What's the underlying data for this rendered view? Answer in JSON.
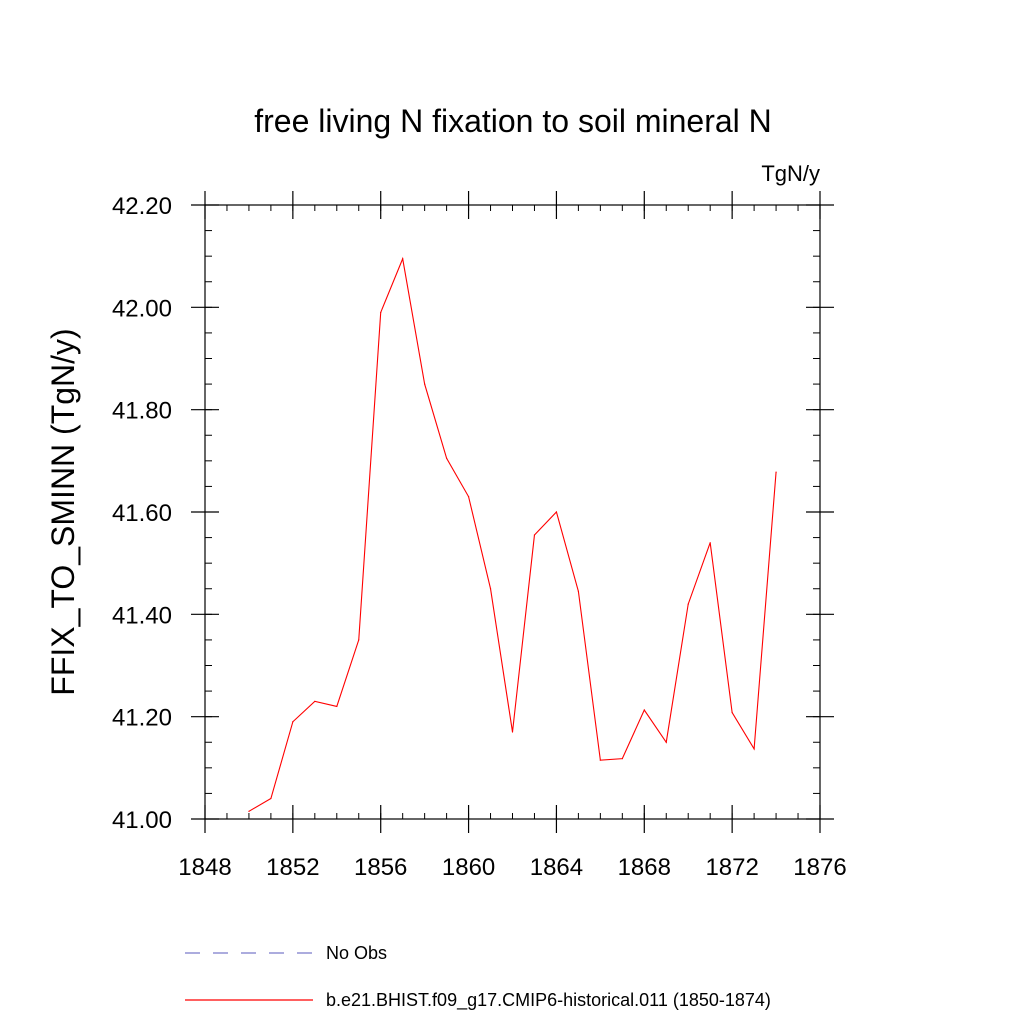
{
  "chart_data": {
    "type": "line",
    "title": "free living N fixation to soil mineral N",
    "units": "TgN/y",
    "ylabel": "FFIX_TO_SMINN  (TgN/y)",
    "xlabel": "",
    "xlim": [
      1848,
      1876
    ],
    "ylim": [
      41.0,
      42.2
    ],
    "x_ticks": [
      1848,
      1852,
      1856,
      1860,
      1864,
      1868,
      1872,
      1876
    ],
    "x_tick_labels": [
      "1848",
      "1852",
      "1856",
      "1860",
      "1864",
      "1868",
      "1872",
      "1876"
    ],
    "y_ticks": [
      41.0,
      41.2,
      41.4,
      41.6,
      41.8,
      42.0,
      42.2
    ],
    "y_tick_labels": [
      "41.00",
      "41.20",
      "41.40",
      "41.60",
      "41.80",
      "42.00",
      "42.20"
    ],
    "grid": false,
    "legend_position": "bottom",
    "series": [
      {
        "name": "b.e21.BHIST.f09_g17.CMIP6-historical.011 (1850-1874)",
        "color": "#ff0000",
        "x": [
          1850,
          1851,
          1852,
          1853,
          1854,
          1855,
          1856,
          1857,
          1858,
          1859,
          1860,
          1861,
          1862,
          1863,
          1864,
          1865,
          1866,
          1867,
          1868,
          1869,
          1870,
          1871,
          1872,
          1873,
          1874
        ],
        "y": [
          41.015,
          41.04,
          41.19,
          41.23,
          41.22,
          41.35,
          41.99,
          42.095,
          41.85,
          41.705,
          41.63,
          41.45,
          41.17,
          41.555,
          41.6,
          41.445,
          41.115,
          41.118,
          41.213,
          41.15,
          41.42,
          41.54,
          41.208,
          41.137,
          41.678
        ]
      }
    ],
    "legend": [
      {
        "label": "No Obs",
        "color": "#7b7bc9",
        "style": "dashed"
      },
      {
        "label": "b.e21.BHIST.f09_g17.CMIP6-historical.011 (1850-1874)",
        "color": "#ff0000",
        "style": "solid"
      }
    ]
  }
}
